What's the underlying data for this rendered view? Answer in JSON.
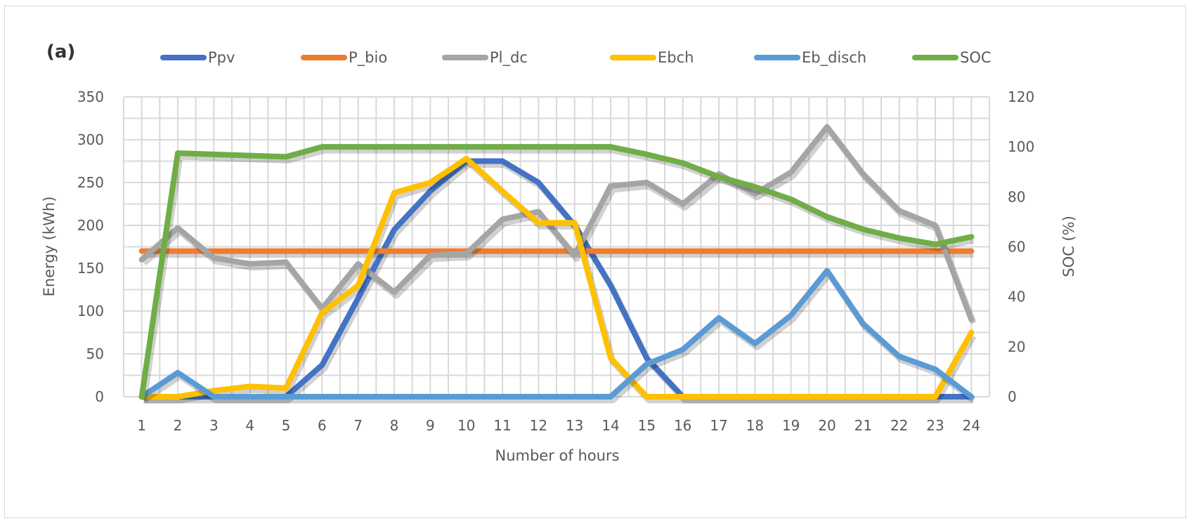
{
  "chart_data": {
    "type": "line",
    "panel_label": "(a)",
    "xlabel": "Number of hours",
    "ylabel": "Energy (kWh)",
    "y2label": "SOC (%)",
    "ylim": [
      0,
      350
    ],
    "y2lim": [
      0,
      120
    ],
    "yticks": [
      0,
      50,
      100,
      150,
      200,
      250,
      300,
      350
    ],
    "y2ticks": [
      0,
      20,
      40,
      60,
      80,
      100,
      120
    ],
    "grid": true,
    "legend_placement": "top",
    "x": [
      1,
      2,
      3,
      4,
      5,
      6,
      7,
      8,
      9,
      10,
      11,
      12,
      13,
      14,
      15,
      16,
      17,
      18,
      19,
      20,
      21,
      22,
      23,
      24
    ],
    "series": [
      {
        "name": "Ppv",
        "color": "#4472C4",
        "axis": "left",
        "values": [
          0,
          0,
          0,
          0,
          0,
          37,
          115,
          195,
          240,
          275,
          275,
          250,
          200,
          130,
          45,
          0,
          0,
          0,
          0,
          0,
          0,
          0,
          0,
          0
        ]
      },
      {
        "name": "P_bio",
        "color": "#ED7D31",
        "axis": "left",
        "values": [
          170,
          170,
          170,
          170,
          170,
          170,
          170,
          170,
          170,
          170,
          170,
          170,
          170,
          170,
          170,
          170,
          170,
          170,
          170,
          170,
          170,
          170,
          170,
          170
        ]
      },
      {
        "name": "Pl_dc",
        "color": "#A5A5A5",
        "axis": "left",
        "values": [
          160,
          197,
          162,
          155,
          157,
          103,
          155,
          122,
          165,
          167,
          207,
          216,
          165,
          246,
          250,
          225,
          260,
          237,
          262,
          315,
          260,
          217,
          200,
          90
        ]
      },
      {
        "name": "Ebch",
        "color": "#FFC000",
        "axis": "left",
        "values": [
          0,
          0,
          7,
          12,
          10,
          98,
          130,
          238,
          250,
          278,
          240,
          203,
          203,
          45,
          0,
          0,
          0,
          0,
          0,
          0,
          0,
          0,
          0,
          75
        ]
      },
      {
        "name": "Eb_disch",
        "color": "#5B9BD5",
        "axis": "left",
        "values": [
          0,
          28,
          0,
          0,
          0,
          0,
          0,
          0,
          0,
          0,
          0,
          0,
          0,
          0,
          38,
          55,
          92,
          62,
          95,
          147,
          85,
          47,
          32,
          0
        ]
      },
      {
        "name": "SOC",
        "color": "#70AD47",
        "axis": "right",
        "values": [
          0,
          97.5,
          97,
          96.5,
          96,
          100,
          100,
          100,
          100,
          100,
          100,
          100,
          100,
          100,
          97,
          93.5,
          88,
          84,
          79,
          72,
          67,
          63.5,
          61,
          64
        ]
      }
    ]
  }
}
